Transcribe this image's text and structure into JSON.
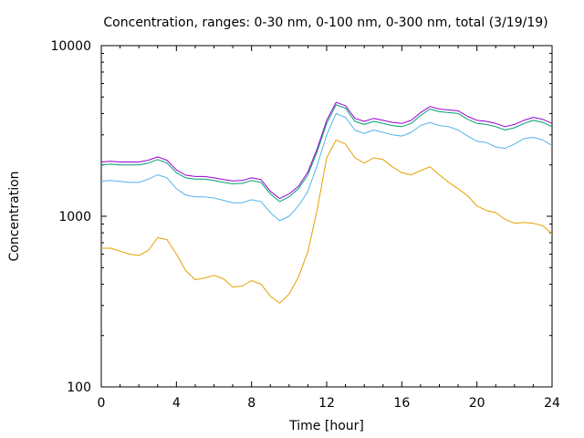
{
  "chart_data": {
    "type": "line",
    "title": "Concentration, ranges: 0-30 nm, 0-100 nm, 0-300 nm, total (3/19/19)",
    "xlabel": "Time [hour]",
    "ylabel": "Concentration",
    "xlim": [
      0,
      24
    ],
    "ylim": [
      100,
      10000
    ],
    "yscale": "log",
    "grid": false,
    "legend": "none",
    "xticks": [
      "0",
      "4",
      "8",
      "12",
      "16",
      "20",
      "24"
    ],
    "yticks": [
      "100",
      "1000",
      "10000"
    ],
    "series": [
      {
        "color": "#e69f00",
        "points": [
          [
            0,
            650
          ],
          [
            0.5,
            650
          ],
          [
            1,
            625
          ],
          [
            1.5,
            600
          ],
          [
            2,
            590
          ],
          [
            2.5,
            630
          ],
          [
            3,
            750
          ],
          [
            3.5,
            730
          ],
          [
            4,
            600
          ],
          [
            4.5,
            480
          ],
          [
            5,
            425
          ],
          [
            5.5,
            435
          ],
          [
            6,
            450
          ],
          [
            6.5,
            430
          ],
          [
            7,
            385
          ],
          [
            7.5,
            390
          ],
          [
            8,
            420
          ],
          [
            8.5,
            400
          ],
          [
            9,
            340
          ],
          [
            9.5,
            310
          ],
          [
            10,
            350
          ],
          [
            10.5,
            440
          ],
          [
            11,
            620
          ],
          [
            11.5,
            1100
          ],
          [
            12,
            2200
          ],
          [
            12.5,
            2800
          ],
          [
            13,
            2650
          ],
          [
            13.5,
            2200
          ],
          [
            14,
            2050
          ],
          [
            14.5,
            2200
          ],
          [
            15,
            2150
          ],
          [
            15.5,
            1950
          ],
          [
            16,
            1800
          ],
          [
            16.5,
            1750
          ],
          [
            17,
            1850
          ],
          [
            17.5,
            1950
          ],
          [
            18,
            1750
          ],
          [
            18.5,
            1580
          ],
          [
            19,
            1450
          ],
          [
            19.5,
            1320
          ],
          [
            20,
            1150
          ],
          [
            20.5,
            1080
          ],
          [
            21,
            1050
          ],
          [
            21.5,
            960
          ],
          [
            22,
            910
          ],
          [
            22.5,
            920
          ],
          [
            23,
            910
          ],
          [
            23.5,
            880
          ],
          [
            24,
            790
          ]
        ]
      },
      {
        "color": "#56b4e9",
        "points": [
          [
            0,
            1600
          ],
          [
            0.5,
            1620
          ],
          [
            1,
            1600
          ],
          [
            1.5,
            1580
          ],
          [
            2,
            1580
          ],
          [
            2.5,
            1650
          ],
          [
            3,
            1750
          ],
          [
            3.5,
            1680
          ],
          [
            4,
            1450
          ],
          [
            4.5,
            1330
          ],
          [
            5,
            1300
          ],
          [
            5.5,
            1300
          ],
          [
            6,
            1280
          ],
          [
            6.5,
            1240
          ],
          [
            7,
            1200
          ],
          [
            7.5,
            1200
          ],
          [
            8,
            1250
          ],
          [
            8.5,
            1220
          ],
          [
            9,
            1050
          ],
          [
            9.5,
            940
          ],
          [
            10,
            1000
          ],
          [
            10.5,
            1150
          ],
          [
            11,
            1400
          ],
          [
            11.5,
            2000
          ],
          [
            12,
            3000
          ],
          [
            12.5,
            4000
          ],
          [
            13,
            3800
          ],
          [
            13.5,
            3200
          ],
          [
            14,
            3050
          ],
          [
            14.5,
            3200
          ],
          [
            15,
            3100
          ],
          [
            15.5,
            3000
          ],
          [
            16,
            2950
          ],
          [
            16.5,
            3100
          ],
          [
            17,
            3400
          ],
          [
            17.5,
            3550
          ],
          [
            18,
            3400
          ],
          [
            18.5,
            3350
          ],
          [
            19,
            3200
          ],
          [
            19.5,
            2950
          ],
          [
            20,
            2750
          ],
          [
            20.5,
            2700
          ],
          [
            21,
            2550
          ],
          [
            21.5,
            2500
          ],
          [
            22,
            2650
          ],
          [
            22.5,
            2850
          ],
          [
            23,
            2900
          ],
          [
            23.5,
            2800
          ],
          [
            24,
            2600
          ]
        ]
      },
      {
        "color": "#009e73",
        "points": [
          [
            0,
            2000
          ],
          [
            0.5,
            2020
          ],
          [
            1,
            2000
          ],
          [
            1.5,
            2000
          ],
          [
            2,
            2000
          ],
          [
            2.5,
            2050
          ],
          [
            3,
            2150
          ],
          [
            3.5,
            2050
          ],
          [
            4,
            1800
          ],
          [
            4.5,
            1680
          ],
          [
            5,
            1650
          ],
          [
            5.5,
            1650
          ],
          [
            6,
            1620
          ],
          [
            6.5,
            1580
          ],
          [
            7,
            1550
          ],
          [
            7.5,
            1560
          ],
          [
            8,
            1620
          ],
          [
            8.5,
            1580
          ],
          [
            9,
            1350
          ],
          [
            9.5,
            1220
          ],
          [
            10,
            1300
          ],
          [
            10.5,
            1450
          ],
          [
            11,
            1750
          ],
          [
            11.5,
            2400
          ],
          [
            12,
            3500
          ],
          [
            12.5,
            4500
          ],
          [
            13,
            4300
          ],
          [
            13.5,
            3600
          ],
          [
            14,
            3450
          ],
          [
            14.5,
            3600
          ],
          [
            15,
            3500
          ],
          [
            15.5,
            3400
          ],
          [
            16,
            3350
          ],
          [
            16.5,
            3500
          ],
          [
            17,
            3900
          ],
          [
            17.5,
            4250
          ],
          [
            18,
            4100
          ],
          [
            18.5,
            4050
          ],
          [
            19,
            4000
          ],
          [
            19.5,
            3700
          ],
          [
            20,
            3500
          ],
          [
            20.5,
            3450
          ],
          [
            21,
            3350
          ],
          [
            21.5,
            3200
          ],
          [
            22,
            3300
          ],
          [
            22.5,
            3500
          ],
          [
            23,
            3650
          ],
          [
            23.5,
            3550
          ],
          [
            24,
            3350
          ]
        ]
      },
      {
        "color": "#9400d3",
        "points": [
          [
            0,
            2080
          ],
          [
            0.5,
            2100
          ],
          [
            1,
            2080
          ],
          [
            1.5,
            2080
          ],
          [
            2,
            2080
          ],
          [
            2.5,
            2130
          ],
          [
            3,
            2230
          ],
          [
            3.5,
            2130
          ],
          [
            4,
            1870
          ],
          [
            4.5,
            1740
          ],
          [
            5,
            1710
          ],
          [
            5.5,
            1710
          ],
          [
            6,
            1680
          ],
          [
            6.5,
            1640
          ],
          [
            7,
            1610
          ],
          [
            7.5,
            1620
          ],
          [
            8,
            1680
          ],
          [
            8.5,
            1640
          ],
          [
            9,
            1400
          ],
          [
            9.5,
            1270
          ],
          [
            10,
            1350
          ],
          [
            10.5,
            1500
          ],
          [
            11,
            1820
          ],
          [
            11.5,
            2500
          ],
          [
            12,
            3650
          ],
          [
            12.5,
            4650
          ],
          [
            13,
            4450
          ],
          [
            13.5,
            3750
          ],
          [
            14,
            3600
          ],
          [
            14.5,
            3750
          ],
          [
            15,
            3650
          ],
          [
            15.5,
            3550
          ],
          [
            16,
            3500
          ],
          [
            16.5,
            3650
          ],
          [
            17,
            4050
          ],
          [
            17.5,
            4400
          ],
          [
            18,
            4250
          ],
          [
            18.5,
            4200
          ],
          [
            19,
            4150
          ],
          [
            19.5,
            3850
          ],
          [
            20,
            3650
          ],
          [
            20.5,
            3600
          ],
          [
            21,
            3500
          ],
          [
            21.5,
            3350
          ],
          [
            22,
            3450
          ],
          [
            22.5,
            3650
          ],
          [
            23,
            3800
          ],
          [
            23.5,
            3700
          ],
          [
            24,
            3500
          ]
        ]
      }
    ]
  }
}
